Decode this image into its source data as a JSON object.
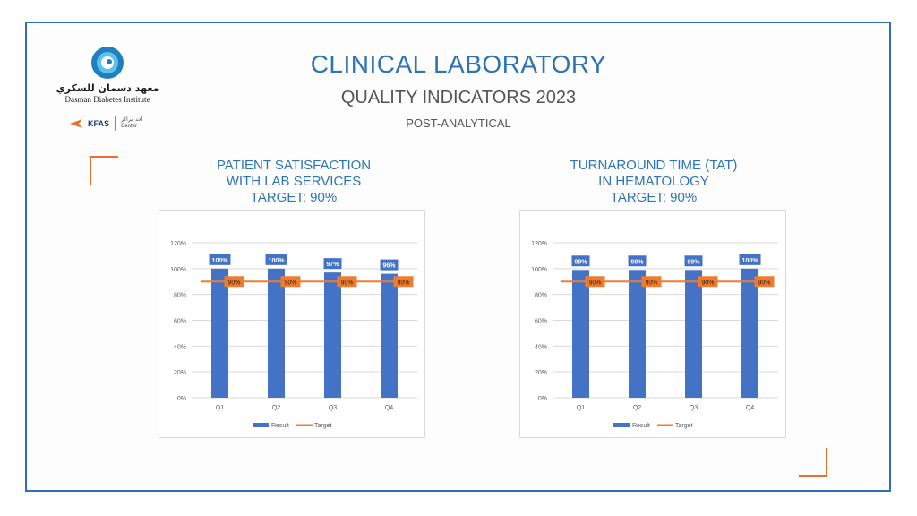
{
  "header": {
    "title": "CLINICAL LABORATORY",
    "subtitle": "QUALITY INDICATORS 2023",
    "section": "POST-ANALYTICAL"
  },
  "logo": {
    "arabic_name": "معهد دسمان للسكري",
    "english_name": "Dasman Diabetes Institute",
    "partner": "KFAS",
    "partner_arabic": "أحد مراكز",
    "partner_center": "Center"
  },
  "colors": {
    "result": "#4472c4",
    "target": "#ed7d31",
    "accent": "#2e74b5",
    "corner": "#e6702e"
  },
  "chart_data": [
    {
      "type": "bar",
      "title_lines": [
        "PATIENT SATISFACTION",
        "WITH LAB SERVICES",
        "TARGET: 90%"
      ],
      "categories": [
        "Q1",
        "Q2",
        "Q3",
        "Q4"
      ],
      "series": [
        {
          "name": "Result",
          "type": "bar",
          "values": [
            100,
            100,
            97,
            96
          ],
          "labels": [
            "100%",
            "100%",
            "97%",
            "96%"
          ]
        },
        {
          "name": "Target",
          "type": "line",
          "values": [
            90,
            90,
            90,
            90
          ],
          "labels": [
            "90%",
            "90%",
            "90%",
            "90%"
          ]
        }
      ],
      "yticks": [
        "0%",
        "20%",
        "40%",
        "60%",
        "80%",
        "100%",
        "120%"
      ],
      "ylim": [
        0,
        120
      ],
      "legend": "bottom",
      "grid": true
    },
    {
      "type": "bar",
      "title_lines": [
        "TURNAROUND TIME (TAT)",
        "IN HEMATOLOGY",
        "TARGET: 90%"
      ],
      "categories": [
        "Q1",
        "Q2",
        "Q3",
        "Q4"
      ],
      "series": [
        {
          "name": "Result",
          "type": "bar",
          "values": [
            99,
            99,
            99,
            100
          ],
          "labels": [
            "99%",
            "99%",
            "99%",
            "100%"
          ]
        },
        {
          "name": "Target",
          "type": "line",
          "values": [
            90,
            90,
            90,
            90
          ],
          "labels": [
            "90%",
            "90%",
            "90%",
            "90%"
          ]
        }
      ],
      "yticks": [
        "0%",
        "20%",
        "40%",
        "60%",
        "80%",
        "100%",
        "120%"
      ],
      "ylim": [
        0,
        120
      ],
      "legend": "bottom",
      "grid": true
    }
  ]
}
